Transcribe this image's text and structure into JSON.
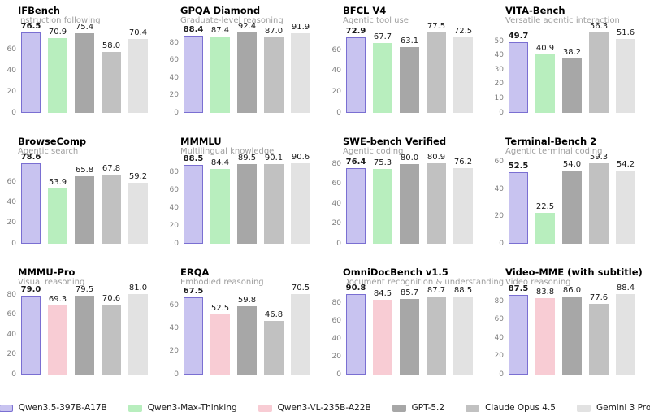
{
  "page": {
    "background": "#ffffff"
  },
  "legend": [
    {
      "label": "Qwen3.5-397B-A17B",
      "fill": "#c8c3f0",
      "border": "#7a6fd2"
    },
    {
      "label": "Qwen3-Max-Thinking",
      "fill": "#b8eebe",
      "border": null
    },
    {
      "label": "Qwen3-VL-235B-A22B",
      "fill": "#f8ccd4",
      "border": null
    },
    {
      "label": "GPT-5.2",
      "fill": "#a7a7a7",
      "border": null
    },
    {
      "label": "Claude Opus 4.5",
      "fill": "#c1c1c1",
      "border": null
    },
    {
      "label": "Gemini 3 Pro",
      "fill": "#e2e2e2",
      "border": null
    }
  ],
  "chart_data": [
    {
      "type": "bar",
      "title": "IFBench",
      "subtitle": "Instruction following",
      "yticks": [
        0,
        20,
        40,
        60
      ],
      "grid": false,
      "bars": [
        {
          "model": "Qwen3.5-397B-A17B",
          "value": 76.5,
          "emphasis": true
        },
        {
          "model": "Qwen3-Max-Thinking",
          "value": 70.9,
          "emphasis": false
        },
        {
          "model": "GPT-5.2",
          "value": 75.4,
          "emphasis": false
        },
        {
          "model": "Claude Opus 4.5",
          "value": 58.0,
          "emphasis": false
        },
        {
          "model": "Gemini 3 Pro",
          "value": 70.4,
          "emphasis": false
        }
      ]
    },
    {
      "type": "bar",
      "title": "GPQA Diamond",
      "subtitle": "Graduate-level reasoning",
      "yticks": [
        0,
        20,
        40,
        60,
        80
      ],
      "grid": false,
      "bars": [
        {
          "model": "Qwen3.5-397B-A17B",
          "value": 88.4,
          "emphasis": true
        },
        {
          "model": "Qwen3-Max-Thinking",
          "value": 87.4,
          "emphasis": false
        },
        {
          "model": "GPT-5.2",
          "value": 92.4,
          "emphasis": false
        },
        {
          "model": "Claude Opus 4.5",
          "value": 87.0,
          "emphasis": false
        },
        {
          "model": "Gemini 3 Pro",
          "value": 91.9,
          "emphasis": false
        }
      ]
    },
    {
      "type": "bar",
      "title": "BFCL V4",
      "subtitle": "Agentic tool use",
      "yticks": [
        0,
        20,
        40,
        60
      ],
      "grid": false,
      "bars": [
        {
          "model": "Qwen3.5-397B-A17B",
          "value": 72.9,
          "emphasis": true
        },
        {
          "model": "Qwen3-Max-Thinking",
          "value": 67.7,
          "emphasis": false
        },
        {
          "model": "GPT-5.2",
          "value": 63.1,
          "emphasis": false
        },
        {
          "model": "Claude Opus 4.5",
          "value": 77.5,
          "emphasis": false
        },
        {
          "model": "Gemini 3 Pro",
          "value": 72.5,
          "emphasis": false
        }
      ]
    },
    {
      "type": "bar",
      "title": "VITA-Bench",
      "subtitle": "Versatile agentic interaction",
      "yticks": [
        0,
        10,
        20,
        30,
        40,
        50
      ],
      "grid": false,
      "bars": [
        {
          "model": "Qwen3.5-397B-A17B",
          "value": 49.7,
          "emphasis": true
        },
        {
          "model": "Qwen3-Max-Thinking",
          "value": 40.9,
          "emphasis": false
        },
        {
          "model": "GPT-5.2",
          "value": 38.2,
          "emphasis": false
        },
        {
          "model": "Claude Opus 4.5",
          "value": 56.3,
          "emphasis": false
        },
        {
          "model": "Gemini 3 Pro",
          "value": 51.6,
          "emphasis": false
        }
      ]
    },
    {
      "type": "bar",
      "title": "BrowseComp",
      "subtitle": "Agentic search",
      "yticks": [
        0,
        20,
        40,
        60
      ],
      "grid": false,
      "bars": [
        {
          "model": "Qwen3.5-397B-A17B",
          "value": 78.6,
          "emphasis": true
        },
        {
          "model": "Qwen3-Max-Thinking",
          "value": 53.9,
          "emphasis": false
        },
        {
          "model": "GPT-5.2",
          "value": 65.8,
          "emphasis": false
        },
        {
          "model": "Claude Opus 4.5",
          "value": 67.8,
          "emphasis": false
        },
        {
          "model": "Gemini 3 Pro",
          "value": 59.2,
          "emphasis": false
        }
      ]
    },
    {
      "type": "bar",
      "title": "MMMLU",
      "subtitle": "Multilingual knowledge",
      "yticks": [
        0,
        20,
        40,
        60,
        80
      ],
      "grid": false,
      "bars": [
        {
          "model": "Qwen3.5-397B-A17B",
          "value": 88.5,
          "emphasis": true
        },
        {
          "model": "Qwen3-Max-Thinking",
          "value": 84.4,
          "emphasis": false
        },
        {
          "model": "GPT-5.2",
          "value": 89.5,
          "emphasis": false
        },
        {
          "model": "Claude Opus 4.5",
          "value": 90.1,
          "emphasis": false
        },
        {
          "model": "Gemini 3 Pro",
          "value": 90.6,
          "emphasis": false
        }
      ]
    },
    {
      "type": "bar",
      "title": "SWE-bench Verified",
      "subtitle": "Agentic coding",
      "yticks": [
        0,
        20,
        40,
        60,
        80
      ],
      "grid": false,
      "bars": [
        {
          "model": "Qwen3.5-397B-A17B",
          "value": 76.4,
          "emphasis": true
        },
        {
          "model": "Qwen3-Max-Thinking",
          "value": 75.3,
          "emphasis": false
        },
        {
          "model": "GPT-5.2",
          "value": 80.0,
          "emphasis": false
        },
        {
          "model": "Claude Opus 4.5",
          "value": 80.9,
          "emphasis": false
        },
        {
          "model": "Gemini 3 Pro",
          "value": 76.2,
          "emphasis": false
        }
      ]
    },
    {
      "type": "bar",
      "title": "Terminal-Bench 2",
      "subtitle": "Agentic terminal coding",
      "yticks": [
        0,
        20,
        40,
        60
      ],
      "grid": false,
      "bars": [
        {
          "model": "Qwen3.5-397B-A17B",
          "value": 52.5,
          "emphasis": true
        },
        {
          "model": "Qwen3-Max-Thinking",
          "value": 22.5,
          "emphasis": false
        },
        {
          "model": "GPT-5.2",
          "value": 54.0,
          "emphasis": false
        },
        {
          "model": "Claude Opus 4.5",
          "value": 59.3,
          "emphasis": false
        },
        {
          "model": "Gemini 3 Pro",
          "value": 54.2,
          "emphasis": false
        }
      ]
    },
    {
      "type": "bar",
      "title": "MMMU-Pro",
      "subtitle": "Visual reasoning",
      "yticks": [
        0,
        20,
        40,
        60,
        80
      ],
      "grid": false,
      "bars": [
        {
          "model": "Qwen3.5-397B-A17B",
          "value": 79.0,
          "emphasis": true
        },
        {
          "model": "Qwen3-VL-235B-A22B",
          "value": 69.3,
          "emphasis": false
        },
        {
          "model": "GPT-5.2",
          "value": 79.5,
          "emphasis": false
        },
        {
          "model": "Claude Opus 4.5",
          "value": 70.6,
          "emphasis": false
        },
        {
          "model": "Gemini 3 Pro",
          "value": 81.0,
          "emphasis": false
        }
      ]
    },
    {
      "type": "bar",
      "title": "ERQA",
      "subtitle": "Embodied reasoning",
      "yticks": [
        0,
        20,
        40,
        60
      ],
      "grid": false,
      "bars": [
        {
          "model": "Qwen3.5-397B-A17B",
          "value": 67.5,
          "emphasis": true
        },
        {
          "model": "Qwen3-VL-235B-A22B",
          "value": 52.5,
          "emphasis": false
        },
        {
          "model": "GPT-5.2",
          "value": 59.8,
          "emphasis": false
        },
        {
          "model": "Claude Opus 4.5",
          "value": 46.8,
          "emphasis": false
        },
        {
          "model": "Gemini 3 Pro",
          "value": 70.5,
          "emphasis": false
        }
      ]
    },
    {
      "type": "bar",
      "title": "OmniDocBench v1.5",
      "subtitle": "Document recognition & understanding",
      "yticks": [
        0,
        20,
        40,
        60,
        80
      ],
      "grid": false,
      "bars": [
        {
          "model": "Qwen3.5-397B-A17B",
          "value": 90.8,
          "emphasis": true
        },
        {
          "model": "Qwen3-VL-235B-A22B",
          "value": 84.5,
          "emphasis": false
        },
        {
          "model": "GPT-5.2",
          "value": 85.7,
          "emphasis": false
        },
        {
          "model": "Claude Opus 4.5",
          "value": 87.7,
          "emphasis": false
        },
        {
          "model": "Gemini 3 Pro",
          "value": 88.5,
          "emphasis": false
        }
      ]
    },
    {
      "type": "bar",
      "title": "Video-MME (with subtitle)",
      "subtitle": "Video reasoning",
      "yticks": [
        0,
        20,
        40,
        60,
        80
      ],
      "grid": false,
      "bars": [
        {
          "model": "Qwen3.5-397B-A17B",
          "value": 87.5,
          "emphasis": true
        },
        {
          "model": "Qwen3-VL-235B-A22B",
          "value": 83.8,
          "emphasis": false
        },
        {
          "model": "GPT-5.2",
          "value": 86.0,
          "emphasis": false
        },
        {
          "model": "Claude Opus 4.5",
          "value": 77.6,
          "emphasis": false
        },
        {
          "model": "Gemini 3 Pro",
          "value": 88.4,
          "emphasis": false
        }
      ]
    }
  ]
}
